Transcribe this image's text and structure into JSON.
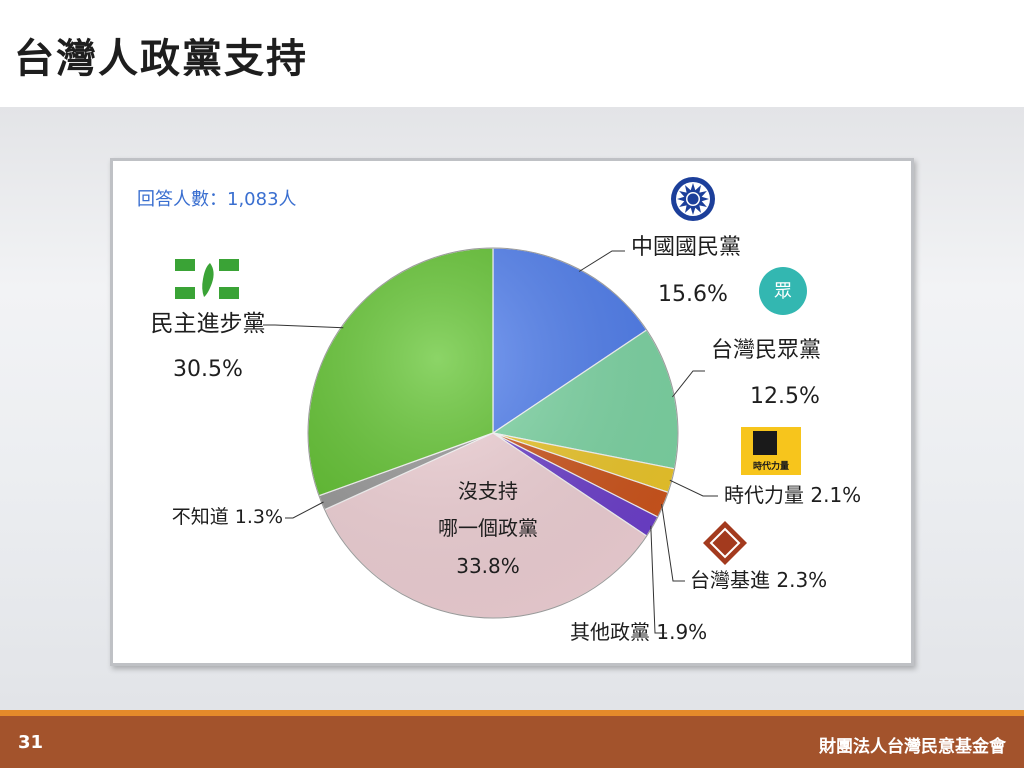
{
  "page": {
    "title": "台灣人政黨支持",
    "page_number": "31",
    "organization": "財團法人台灣民意基金會"
  },
  "chart_data": {
    "type": "pie",
    "title": "",
    "annotation": "回答人數：1,083人",
    "slices": [
      {
        "key": "kmt",
        "label": "中國國民黨",
        "value": 15.6,
        "value_label": "15.6%",
        "color": "#4f7ff2",
        "logo": "kmt-sun-emblem-icon"
      },
      {
        "key": "tpp",
        "label": "台灣民眾黨",
        "value": 12.5,
        "value_label": "12.5%",
        "color": "#7fdaa7",
        "logo": "tpp-logo-icon",
        "logo_text": "眾"
      },
      {
        "key": "npp",
        "label": "時代力量",
        "value": 2.1,
        "value_label": "2.1%",
        "color": "#f2cb2a",
        "logo": "npp-logo-icon",
        "logo_text": "時代力量"
      },
      {
        "key": "tsp",
        "label": "台灣基進",
        "value": 2.3,
        "value_label": "2.3%",
        "color": "#d2561c",
        "logo": "tsp-logo-icon"
      },
      {
        "key": "other",
        "label": "其他政黨",
        "value": 1.9,
        "value_label": "1.9%",
        "color": "#6f40d0"
      },
      {
        "key": "none",
        "label_lines": [
          "沒支持",
          "哪一個政黨"
        ],
        "value": 33.8,
        "value_label": "33.8%",
        "color": "#f6d6db"
      },
      {
        "key": "dk",
        "label": "不知道",
        "value": 1.3,
        "value_label": "1.3%",
        "color": "#9a9a9a"
      },
      {
        "key": "dpp",
        "label": "民主進步黨",
        "value": 30.5,
        "value_label": "30.5%",
        "color": "#5fc42c",
        "logo": "dpp-logo-icon"
      }
    ]
  }
}
